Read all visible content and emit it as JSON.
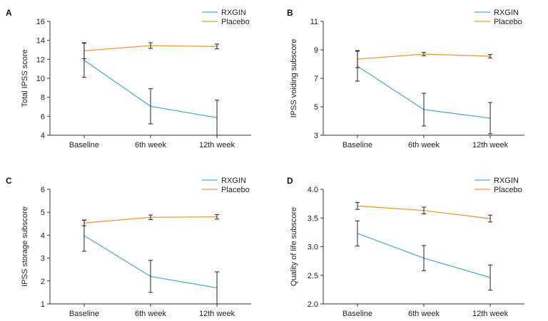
{
  "colors": {
    "rxgin": "#5aaad6",
    "placebo": "#ee9a3c",
    "axis": "#333333"
  },
  "chart_data": [
    {
      "type": "line",
      "panel": "A",
      "categories": [
        "Baseline",
        "6th week",
        "12th week"
      ],
      "ylabel": "Total IPSS score",
      "ylim": [
        4,
        16
      ],
      "yticks": [
        4,
        6,
        8,
        10,
        12,
        14,
        16
      ],
      "yticklabels": [
        "4",
        "6",
        "8",
        "10",
        "12",
        "14",
        "16"
      ],
      "legend_position": "top-right",
      "series": [
        {
          "name": "RXGIN",
          "color": "#5aaad6",
          "values": [
            11.9,
            7.05,
            5.85
          ],
          "err": [
            1.8,
            1.85,
            1.85
          ]
        },
        {
          "name": "Placebo",
          "color": "#ee9a3c",
          "values": [
            12.9,
            13.45,
            13.35
          ],
          "err": [
            0.85,
            0.3,
            0.25
          ]
        }
      ]
    },
    {
      "type": "line",
      "panel": "B",
      "categories": [
        "Baseline",
        "6th week",
        "12th week"
      ],
      "ylabel": "IPSS voiding subscore",
      "ylim": [
        3,
        11
      ],
      "yticks": [
        3,
        5,
        7,
        9,
        11
      ],
      "yticklabels": [
        "3",
        "5",
        "7",
        "9",
        "11"
      ],
      "legend_position": "top-right",
      "series": [
        {
          "name": "RXGIN",
          "color": "#5aaad6",
          "values": [
            7.85,
            4.8,
            4.2
          ],
          "err": [
            1.05,
            1.15,
            1.1
          ]
        },
        {
          "name": "Placebo",
          "color": "#ee9a3c",
          "values": [
            8.35,
            8.7,
            8.55
          ],
          "err": [
            0.6,
            0.12,
            0.12
          ]
        }
      ]
    },
    {
      "type": "line",
      "panel": "C",
      "categories": [
        "Baseline",
        "6th week",
        "12th week"
      ],
      "ylabel": "IPSS storage subscore",
      "ylim": [
        1,
        6
      ],
      "yticks": [
        1,
        2,
        3,
        4,
        5,
        6
      ],
      "yticklabels": [
        "1",
        "2",
        "3",
        "4",
        "5",
        "6"
      ],
      "legend_position": "top-right",
      "series": [
        {
          "name": "RXGIN",
          "color": "#5aaad6",
          "values": [
            3.98,
            2.2,
            1.7
          ],
          "err": [
            0.68,
            0.7,
            0.7
          ]
        },
        {
          "name": "Placebo",
          "color": "#ee9a3c",
          "values": [
            4.53,
            4.78,
            4.8
          ],
          "err": [
            0.12,
            0.1,
            0.1
          ]
        }
      ]
    },
    {
      "type": "line",
      "panel": "D",
      "categories": [
        "Baseline",
        "6th week",
        "12th week"
      ],
      "ylabel": "Quality of life subscore",
      "ylim": [
        2.0,
        4.0
      ],
      "yticks": [
        2.0,
        2.5,
        3.0,
        3.5,
        4.0
      ],
      "yticklabels": [
        "2.0",
        "2.5",
        "3.0",
        "3.5",
        "4.0"
      ],
      "legend_position": "top-right",
      "series": [
        {
          "name": "RXGIN",
          "color": "#5aaad6",
          "values": [
            3.23,
            2.8,
            2.46
          ],
          "err": [
            0.22,
            0.22,
            0.22
          ]
        },
        {
          "name": "Placebo",
          "color": "#ee9a3c",
          "values": [
            3.71,
            3.63,
            3.49
          ],
          "err": [
            0.06,
            0.06,
            0.06
          ]
        }
      ]
    }
  ]
}
